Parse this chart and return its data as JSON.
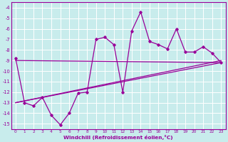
{
  "xlabel": "Windchill (Refroidissement éolien,°C)",
  "bg_color": "#c8ecec",
  "line_color": "#990099",
  "grid_color": "#ffffff",
  "xlim": [
    -0.5,
    23.5
  ],
  "ylim": [
    -15.5,
    -3.5
  ],
  "yticks": [
    -4,
    -5,
    -6,
    -7,
    -8,
    -9,
    -10,
    -11,
    -12,
    -13,
    -14,
    -15
  ],
  "xticks": [
    0,
    1,
    2,
    3,
    4,
    5,
    6,
    7,
    8,
    9,
    10,
    11,
    12,
    13,
    14,
    15,
    16,
    17,
    18,
    19,
    20,
    21,
    22,
    23
  ],
  "main_x": [
    0,
    1,
    2,
    3,
    4,
    5,
    6,
    7,
    8,
    9,
    10,
    11,
    12,
    13,
    14,
    15,
    16,
    17,
    18,
    19,
    20,
    21,
    22,
    23
  ],
  "main_y": [
    -8.8,
    -13.0,
    -13.3,
    -12.5,
    -14.2,
    -15.1,
    -14.0,
    -12.1,
    -12.0,
    -7.0,
    -6.8,
    -7.5,
    -12.0,
    -6.2,
    -4.4,
    -7.2,
    -7.5,
    -7.9,
    -6.0,
    -8.2,
    -8.2,
    -7.7,
    -8.3,
    -9.2
  ],
  "reg_line1_x": [
    0,
    23
  ],
  "reg_line1_y": [
    -9.0,
    -9.2
  ],
  "reg_line2_x": [
    0,
    23
  ],
  "reg_line2_y": [
    -13.0,
    -9.2
  ],
  "reg_line3_x": [
    0,
    23
  ],
  "reg_line3_y": [
    -13.0,
    -9.0
  ]
}
